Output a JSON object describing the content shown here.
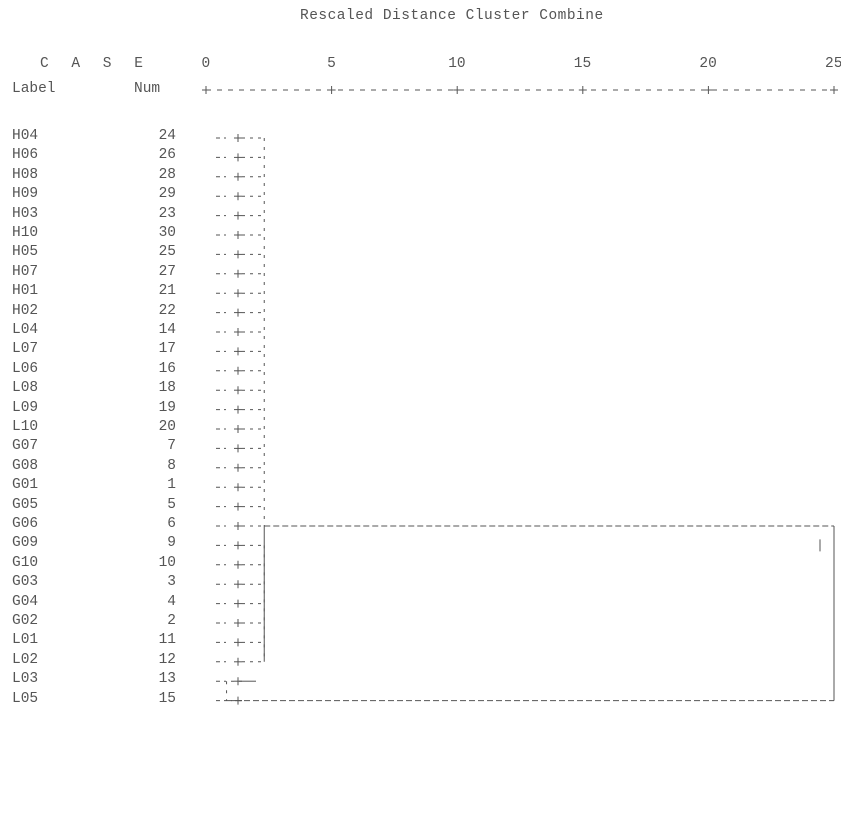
{
  "title": "Rescaled Distance Cluster Combine",
  "header": {
    "case": "C A S E",
    "label": "Label",
    "num": "Num"
  },
  "chart_data": {
    "type": "dendrogram",
    "title": "Rescaled Distance Cluster Combine",
    "xlim": [
      0,
      25
    ],
    "ticks": [
      "0",
      "5",
      "10",
      "15",
      "20",
      "25"
    ],
    "tick_values": [
      0,
      5,
      10,
      15,
      20,
      25
    ],
    "cases": [
      {
        "label": "H04",
        "num": "24"
      },
      {
        "label": "H06",
        "num": "26"
      },
      {
        "label": "H08",
        "num": "28"
      },
      {
        "label": "H09",
        "num": "29"
      },
      {
        "label": "H03",
        "num": "23"
      },
      {
        "label": "H10",
        "num": "30"
      },
      {
        "label": "H05",
        "num": "25"
      },
      {
        "label": "H07",
        "num": "27"
      },
      {
        "label": "H01",
        "num": "21"
      },
      {
        "label": "H02",
        "num": "22"
      },
      {
        "label": "L04",
        "num": "14"
      },
      {
        "label": "L07",
        "num": "17"
      },
      {
        "label": "L06",
        "num": "16"
      },
      {
        "label": "L08",
        "num": "18"
      },
      {
        "label": "L09",
        "num": "19"
      },
      {
        "label": "L10",
        "num": "20"
      },
      {
        "label": "G07",
        "num": "7"
      },
      {
        "label": "G08",
        "num": "8"
      },
      {
        "label": "G01",
        "num": "1"
      },
      {
        "label": "G05",
        "num": "5"
      },
      {
        "label": "G06",
        "num": "6"
      },
      {
        "label": "G09",
        "num": "9"
      },
      {
        "label": "G10",
        "num": "10"
      },
      {
        "label": "G03",
        "num": "3"
      },
      {
        "label": "G04",
        "num": "4"
      },
      {
        "label": "G02",
        "num": "2"
      },
      {
        "label": "L01",
        "num": "11"
      },
      {
        "label": "L02",
        "num": "12"
      },
      {
        "label": "L03",
        "num": "13"
      },
      {
        "label": "L05",
        "num": "15"
      }
    ],
    "merges": [
      {
        "cases": [
          "H04",
          "H06",
          "H08",
          "H09",
          "H03",
          "H10",
          "H05",
          "H07",
          "H01",
          "H02",
          "L04",
          "L07",
          "L06",
          "L08",
          "L09",
          "L10",
          "G07",
          "G08",
          "G01",
          "G05",
          "G06"
        ],
        "distance": 2
      },
      {
        "cases": [
          "G09",
          "G10",
          "G03",
          "G04",
          "G02",
          "L01",
          "L02"
        ],
        "distance": 2
      },
      {
        "cases": [
          "L03",
          "L05"
        ],
        "distance": 0.5
      },
      {
        "cases": [
          "cluster-1",
          "cluster-2"
        ],
        "distance": 25
      },
      {
        "cases": [
          "cluster-1+2",
          "cluster-3"
        ],
        "distance": 25
      }
    ]
  }
}
